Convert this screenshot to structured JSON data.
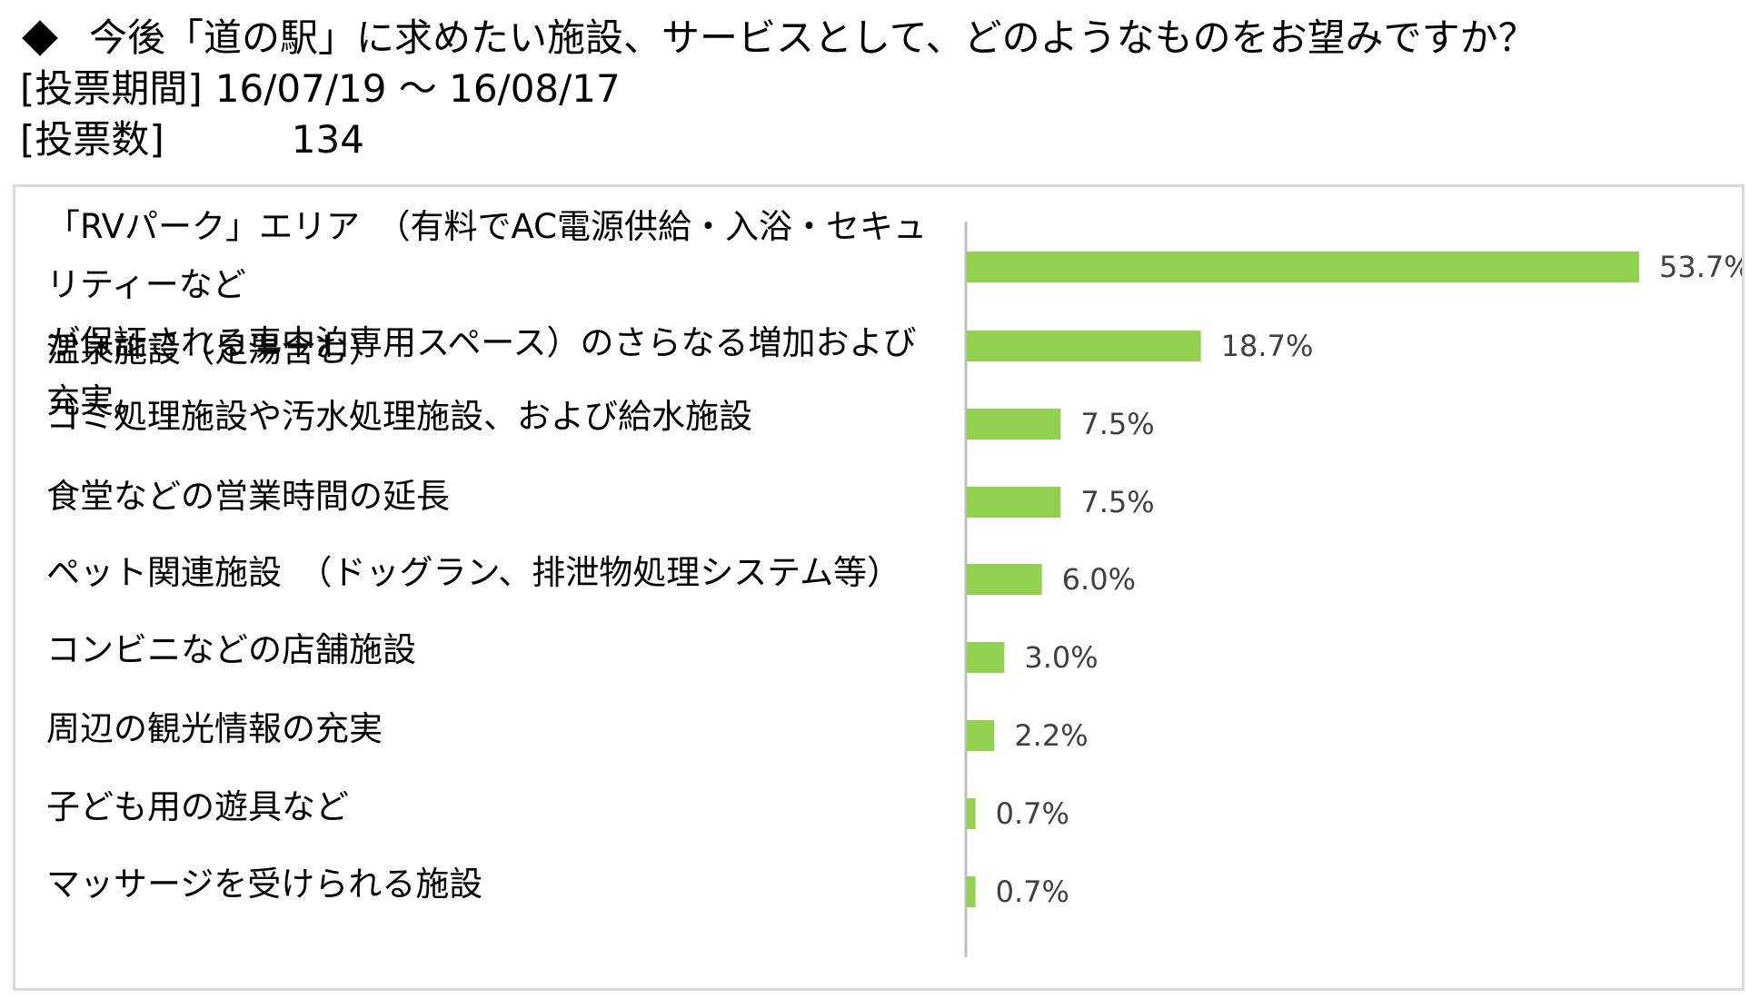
{
  "header": {
    "question": "今後「道の駅」に求めたい施設、サービスとして、どのようなものをお望みですか？",
    "period_label": "[投票期間]",
    "period_value": "16/07/19 ～ 16/08/17",
    "count_label": "[投票数]",
    "count_value": "134"
  },
  "chart_data": {
    "type": "bar",
    "orientation": "horizontal",
    "title": "",
    "xlabel": "",
    "ylabel": "",
    "categories": [
      "「RVパーク」エリア　（有料でAC電源供給・入浴・セキュリティーなどが保証される車中泊専用スペース）のさらなる増加および充実。",
      "温泉施設（足湯含む）",
      "ゴミ処理施設や汚水処理施設、および給水施設",
      "食堂などの営業時間の延長",
      "ペット関連施設　（ドッグラン、排泄物処理システム等）",
      "コンビニなどの店舗施設",
      "周辺の観光情報の充実",
      "子ども用の遊具など",
      "マッサージを受けられる施設"
    ],
    "category_display": [
      "「RVパーク」エリア　（有料でAC電源供給・入浴・セキュリティーなど\nが保証される車中泊専用スペース）のさらなる増加および充実。",
      "温泉施設（足湯含む）",
      "ゴミ処理施設や汚水処理施設、および給水施設",
      "食堂などの営業時間の延長",
      "ペット関連施設　（ドッグラン、排泄物処理システム等）",
      "コンビニなどの店舗施設",
      "周辺の観光情報の充実",
      "子ども用の遊具など",
      "マッサージを受けられる施設"
    ],
    "values": [
      53.7,
      18.7,
      7.5,
      7.5,
      6.0,
      3.0,
      2.2,
      0.7,
      0.7
    ],
    "value_labels": [
      "53.7%",
      "18.7%",
      "7.5%",
      "7.5%",
      "6.0%",
      "3.0%",
      "2.2%",
      "0.7%",
      "0.7%"
    ],
    "unit": "%",
    "xlim": [
      0,
      60
    ],
    "grid": false,
    "legend": "none",
    "bar_color": "#92d050"
  }
}
